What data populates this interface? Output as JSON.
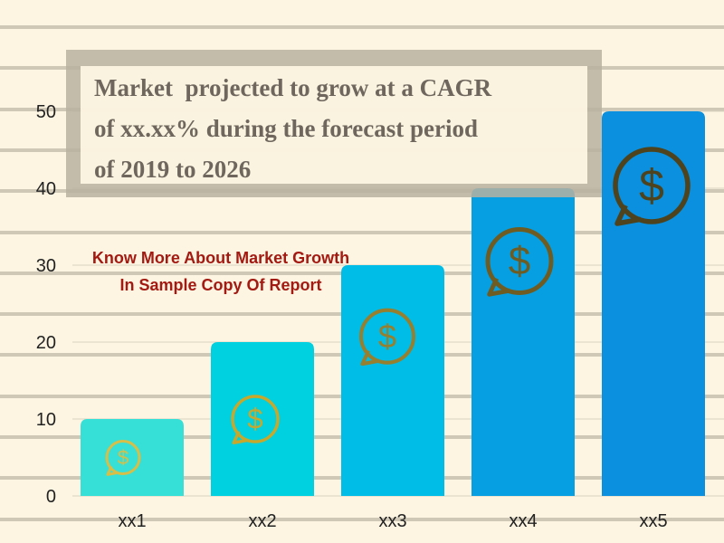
{
  "headline": {
    "lines": [
      "Market  projected to grow at a CAGR",
      "of xx.xx% during the forecast period",
      "of 2019 to 2026"
    ]
  },
  "cta": {
    "lines": [
      "Know More About Market Growth",
      "In Sample Copy Of Report"
    ]
  },
  "icon": "dollar-speech-bubble-icon",
  "colors": {
    "background": "#fdf5e2",
    "stripe": "#cfc8b6",
    "bars": [
      "#36e0d6",
      "#00d1e0",
      "#00bde8",
      "#069fe2",
      "#0a90de"
    ],
    "icons": [
      "#d6be48",
      "#c8a82c",
      "#967f2e",
      "#6f5c22",
      "#4e431c"
    ],
    "headline_text": "#6f675e",
    "cta_text": "#a31a12"
  },
  "chart_data": {
    "type": "bar",
    "title": "",
    "xlabel": "",
    "ylabel": "",
    "categories": [
      "xx1",
      "xx2",
      "xx3",
      "xx4",
      "xx5"
    ],
    "values": [
      10,
      20,
      30,
      40,
      50
    ],
    "ylim": [
      0,
      50
    ],
    "yticks": [
      0,
      10,
      20,
      30,
      40,
      50
    ],
    "grid": true,
    "legend": "none"
  }
}
